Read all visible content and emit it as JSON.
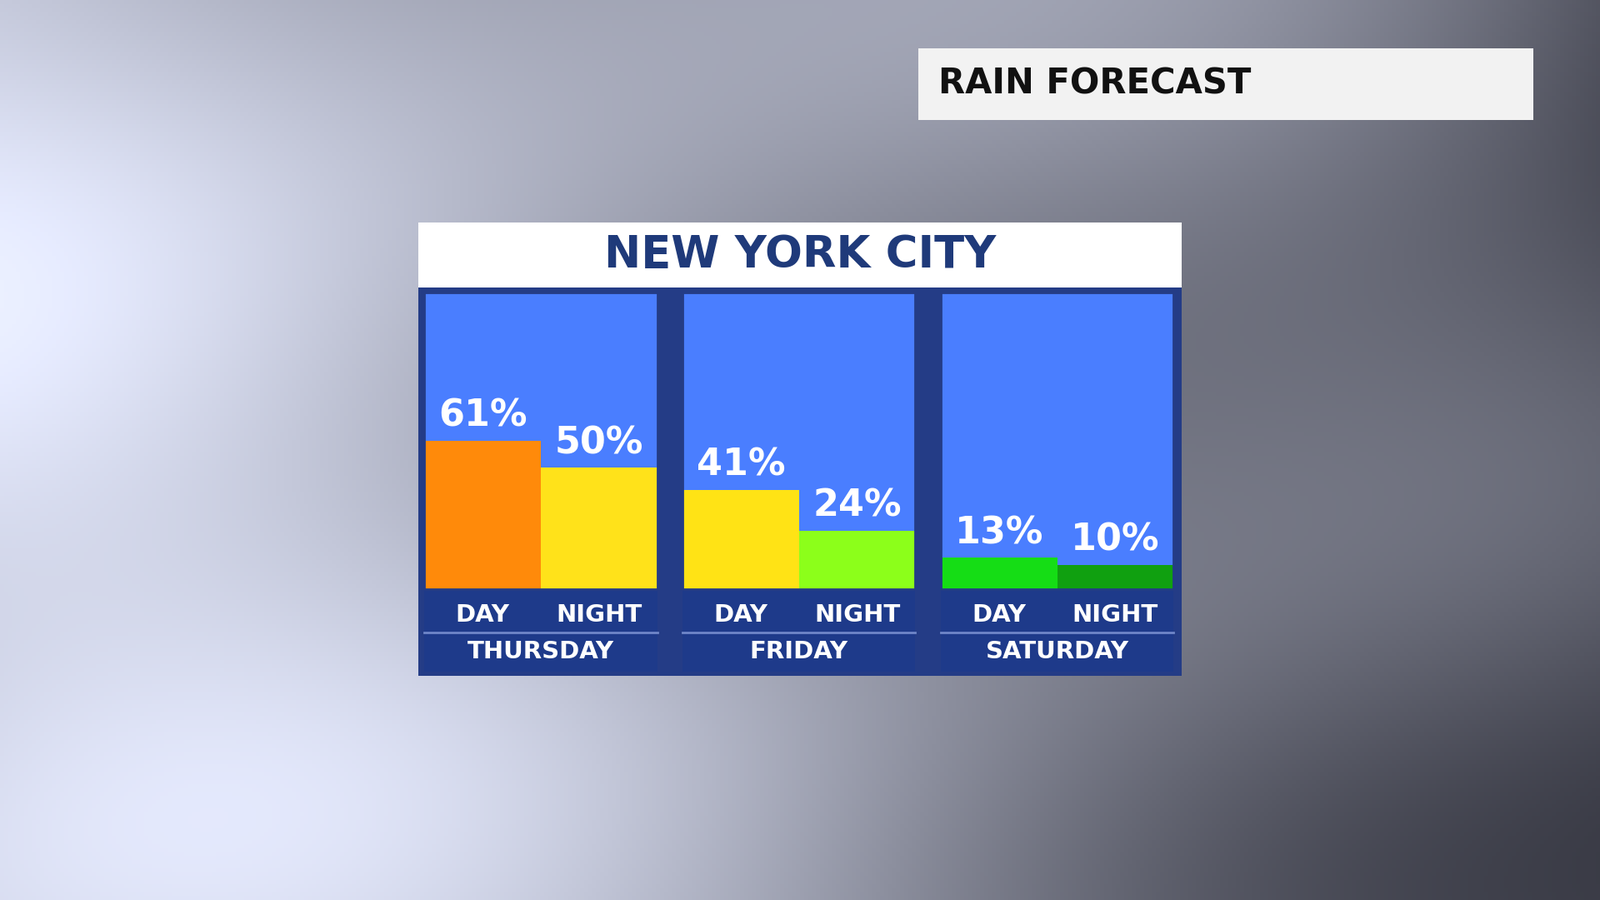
{
  "chart_data": {
    "type": "bar",
    "title": "NEW YORK CITY",
    "subtitle": "RAIN FORECAST",
    "categories": [
      "THURSDAY",
      "FRIDAY",
      "SATURDAY"
    ],
    "series": [
      {
        "name": "DAY",
        "values": [
          61,
          41,
          13
        ],
        "value_labels": [
          "61%",
          "41%",
          "13%"
        ],
        "colors": [
          "#ff8a0a",
          "#ffe315",
          "#15dd15"
        ]
      },
      {
        "name": "NIGHT",
        "values": [
          50,
          24,
          10
        ],
        "value_labels": [
          "50%",
          "24%",
          "10%"
        ],
        "colors": [
          "#ffe21a",
          "#8cff1a",
          "#10a010"
        ]
      }
    ],
    "ylim": [
      0,
      122
    ],
    "data_labels": true,
    "tick_labels": "x",
    "grid": false
  }
}
